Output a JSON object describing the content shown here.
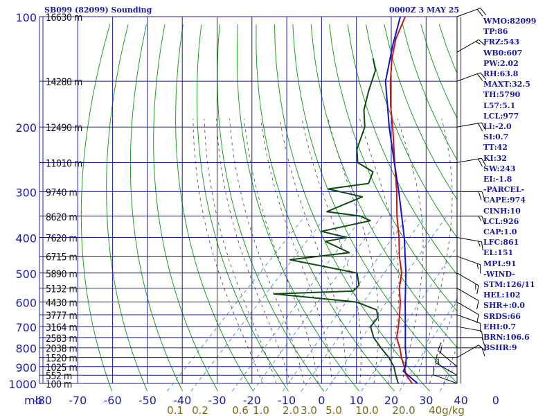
{
  "header": {
    "station": "SB099 (82099) Sounding",
    "time": "0000Z  3 MAY 25"
  },
  "indices": [
    "WMO:82099",
    "TP:86",
    "FRZ:543",
    "WB0:607",
    "PW:2.02",
    "RH:63.8",
    "MAXT:32.5",
    "TH:5790",
    "L57:5.1",
    "LCL:977",
    "LI:-2.0",
    "SI:0.7",
    "TT:42",
    "KI:32",
    "SW:243",
    "EI:-1.8",
    "-PARCEL-",
    "CAPE:974",
    "CINH:10",
    "LCL:926",
    "CAP:1.0",
    "LFC:861",
    "EL:151",
    "MPL:91",
    "-WIND-",
    "STM:126/11",
    "HEL:102",
    "SHR+:0.0",
    "SRDS:66",
    "EHI:0.7",
    "BRN:106.6",
    "BSHR:9"
  ],
  "colors": {
    "background": "#ffffff",
    "grid": "#1c1ca0",
    "dry_adiabat": "#1ea01e",
    "moist_adiabat": "#555555",
    "mixing_ratio": "#3c8cd2",
    "temperature": "#c81414",
    "dewpoint": "#0f4a0f",
    "parcel": "#1414c8",
    "wind_barb": "#000000",
    "axis_text": "#1c1ca0",
    "mixing_text": "#7a6a1c"
  },
  "chart_data": {
    "type": "skew-t log-p sounding",
    "x_axis": {
      "unit_label": "mb",
      "ticks": [
        "-80",
        "-70",
        "-60",
        "-50",
        "-40",
        "-30",
        "-20",
        "-10",
        "0",
        "10",
        "20",
        "30",
        "40",
        "0"
      ],
      "range": [
        -80,
        40
      ]
    },
    "y_axis": {
      "ticks": [
        "100",
        "200",
        "300",
        "400",
        "500",
        "600",
        "700",
        "800",
        "900",
        "1000"
      ],
      "range": [
        1000,
        100
      ],
      "scale": "log"
    },
    "height_labels": [
      {
        "p": 100,
        "label": "16630 m"
      },
      {
        "p": 150,
        "label": "14280 m"
      },
      {
        "p": 200,
        "label": "12490 m"
      },
      {
        "p": 250,
        "label": "11010 m"
      },
      {
        "p": 300,
        "label": "9740 m"
      },
      {
        "p": 350,
        "label": "8620 m"
      },
      {
        "p": 400,
        "label": "7620 m"
      },
      {
        "p": 450,
        "label": "6715 m"
      },
      {
        "p": 500,
        "label": "5890 m"
      },
      {
        "p": 550,
        "label": "5132 m"
      },
      {
        "p": 600,
        "label": "4430 m"
      },
      {
        "p": 650,
        "label": "3777 m"
      },
      {
        "p": 700,
        "label": "3164 m"
      },
      {
        "p": 750,
        "label": "2583 m"
      },
      {
        "p": 800,
        "label": "2038 m"
      },
      {
        "p": 850,
        "label": "1520 m"
      },
      {
        "p": 900,
        "label": "1025 m"
      },
      {
        "p": 950,
        "label": "552 m"
      },
      {
        "p": 1000,
        "label": "100 m"
      }
    ],
    "mixing_ratio_labels": [
      "0.1",
      "0.2",
      "0.6",
      "1.0",
      "2.0",
      "3.0",
      "5.0",
      "10.0",
      "20.0",
      "40g/kg"
    ],
    "series": [
      {
        "name": "temperature",
        "points": [
          [
            1000,
            27.0
          ],
          [
            950,
            23.0
          ],
          [
            900,
            20.0
          ],
          [
            850,
            16.6
          ],
          [
            800,
            13.4
          ],
          [
            750,
            9.6
          ],
          [
            700,
            7.0
          ],
          [
            650,
            4.0
          ],
          [
            600,
            0.6
          ],
          [
            550,
            -3.6
          ],
          [
            500,
            -7.2
          ],
          [
            450,
            -12.6
          ],
          [
            400,
            -18.0
          ],
          [
            350,
            -24.6
          ],
          [
            300,
            -31.6
          ],
          [
            250,
            -40.4
          ],
          [
            200,
            -51.0
          ],
          [
            175,
            -57.6
          ],
          [
            150,
            -64.6
          ],
          [
            130,
            -70.6
          ],
          [
            115,
            -75.0
          ],
          [
            100,
            -78.6
          ]
        ]
      },
      {
        "name": "dewpoint",
        "points": [
          [
            1000,
            23.0
          ],
          [
            950,
            20.0
          ],
          [
            900,
            17.0
          ],
          [
            850,
            13.0
          ],
          [
            800,
            8.0
          ],
          [
            750,
            3.0
          ],
          [
            700,
            -1.0
          ],
          [
            660,
            -1.5
          ],
          [
            630,
            -4.0
          ],
          [
            600,
            -12.0
          ],
          [
            570,
            -38.0
          ],
          [
            560,
            -16.0
          ],
          [
            540,
            -16.0
          ],
          [
            500,
            -20.0
          ],
          [
            460,
            -43.0
          ],
          [
            440,
            -28.0
          ],
          [
            410,
            -38.0
          ],
          [
            400,
            -33.0
          ],
          [
            385,
            -42.0
          ],
          [
            360,
            -31.0
          ],
          [
            350,
            -35.0
          ],
          [
            340,
            -46.0
          ],
          [
            310,
            -40.0
          ],
          [
            295,
            -52.0
          ],
          [
            285,
            -42.0
          ],
          [
            265,
            -44.0
          ],
          [
            250,
            -51.0
          ],
          [
            230,
            -55.0
          ],
          [
            200,
            -59.0
          ],
          [
            180,
            -64.0
          ],
          [
            160,
            -68.0
          ],
          [
            140,
            -72.0
          ],
          [
            130,
            -76.0
          ]
        ]
      },
      {
        "name": "parcel",
        "points": [
          [
            1000,
            28.5
          ],
          [
            926,
            21.0
          ],
          [
            900,
            20.3
          ],
          [
            850,
            18.0
          ],
          [
            800,
            15.0
          ],
          [
            700,
            9.0
          ],
          [
            600,
            2.0
          ],
          [
            500,
            -6.0
          ],
          [
            400,
            -16.5
          ],
          [
            300,
            -31.0
          ],
          [
            250,
            -40.5
          ],
          [
            200,
            -52.0
          ],
          [
            150,
            -66.0
          ],
          [
            120,
            -74.0
          ],
          [
            100,
            -80.0
          ]
        ]
      }
    ],
    "wind_barbs": [
      {
        "p": 1000,
        "dir": 110,
        "spd": 10
      },
      {
        "p": 950,
        "dir": 120,
        "spd": 15
      },
      {
        "p": 900,
        "dir": 130,
        "spd": 15
      },
      {
        "p": 850,
        "dir": 240,
        "spd": 10
      },
      {
        "p": 800,
        "dir": 270,
        "spd": 10
      },
      {
        "p": 750,
        "dir": 270,
        "spd": 10
      },
      {
        "p": 700,
        "dir": 280,
        "spd": 10
      },
      {
        "p": 650,
        "dir": 290,
        "spd": 10
      },
      {
        "p": 600,
        "dir": 300,
        "spd": 10
      },
      {
        "p": 550,
        "dir": 300,
        "spd": 10
      },
      {
        "p": 500,
        "dir": 300,
        "spd": 15
      },
      {
        "p": 450,
        "dir": 290,
        "spd": 15
      },
      {
        "p": 400,
        "dir": 280,
        "spd": 15
      },
      {
        "p": 350,
        "dir": 270,
        "spd": 15
      },
      {
        "p": 300,
        "dir": 270,
        "spd": 20
      },
      {
        "p": 250,
        "dir": 260,
        "spd": 20
      },
      {
        "p": 200,
        "dir": 260,
        "spd": 20
      },
      {
        "p": 150,
        "dir": 250,
        "spd": 20
      },
      {
        "p": 125,
        "dir": 240,
        "spd": 15
      },
      {
        "p": 100,
        "dir": 250,
        "spd": 20
      }
    ]
  }
}
